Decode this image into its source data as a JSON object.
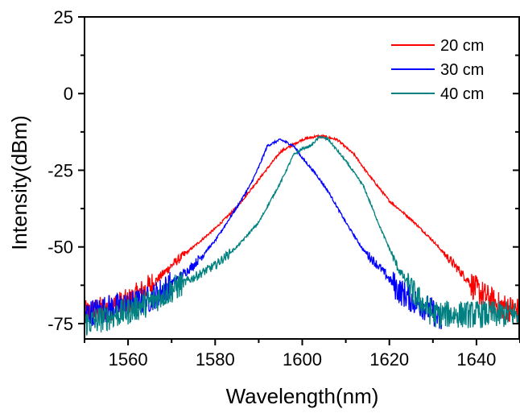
{
  "chart_data": {
    "type": "line",
    "title": "",
    "xlabel": "Wavelength(nm)",
    "ylabel": "Intensity(dBm)",
    "xlim": [
      1550,
      1650
    ],
    "ylim": [
      -80,
      25
    ],
    "x_ticks": [
      1560,
      1580,
      1600,
      1620,
      1640
    ],
    "y_ticks": [
      25,
      0,
      -25,
      -50,
      -75
    ],
    "x_tick_labels": [
      "1560",
      "1580",
      "1600",
      "1620",
      "1640"
    ],
    "y_tick_labels": [
      "25",
      "0",
      "-25",
      "-50",
      "-75"
    ],
    "grid": false,
    "legend_position": "top-right",
    "series": [
      {
        "name": "20 cm",
        "color": "#ff0000",
        "x": [
          1550,
          1555,
          1560,
          1565,
          1570,
          1575,
          1580,
          1585,
          1590,
          1595,
          1600,
          1603,
          1605,
          1608,
          1612,
          1615,
          1620,
          1625,
          1630,
          1635,
          1640,
          1645,
          1650
        ],
        "y": [
          -72,
          -70,
          -68,
          -63,
          -56,
          -50,
          -44,
          -37,
          -28,
          -19,
          -15,
          -14,
          -14,
          -15,
          -20,
          -26,
          -35,
          -41,
          -48,
          -56,
          -64,
          -69,
          -71
        ]
      },
      {
        "name": "30 cm",
        "color": "#0000ff",
        "x": [
          1550,
          1555,
          1560,
          1565,
          1570,
          1575,
          1580,
          1585,
          1588,
          1590,
          1592,
          1595,
          1598,
          1600,
          1603,
          1606,
          1610,
          1614,
          1618,
          1622,
          1626,
          1630,
          1632
        ],
        "y": [
          -72,
          -70,
          -69,
          -67,
          -62,
          -56,
          -48,
          -37,
          -30,
          -24,
          -17,
          -15,
          -17,
          -21,
          -26,
          -32,
          -42,
          -51,
          -57,
          -64,
          -68,
          -71,
          -75
        ]
      },
      {
        "name": "40 cm",
        "color": "#008080",
        "x": [
          1550,
          1555,
          1560,
          1565,
          1570,
          1575,
          1580,
          1585,
          1590,
          1595,
          1598,
          1600,
          1602,
          1604,
          1606,
          1610,
          1614,
          1618,
          1622,
          1626,
          1630,
          1640,
          1650
        ],
        "y": [
          -75,
          -73,
          -71,
          -68,
          -64,
          -60,
          -56,
          -50,
          -42,
          -29,
          -20,
          -18,
          -17,
          -14,
          -15,
          -22,
          -30,
          -44,
          -57,
          -66,
          -72,
          -72,
          -72
        ]
      }
    ]
  }
}
